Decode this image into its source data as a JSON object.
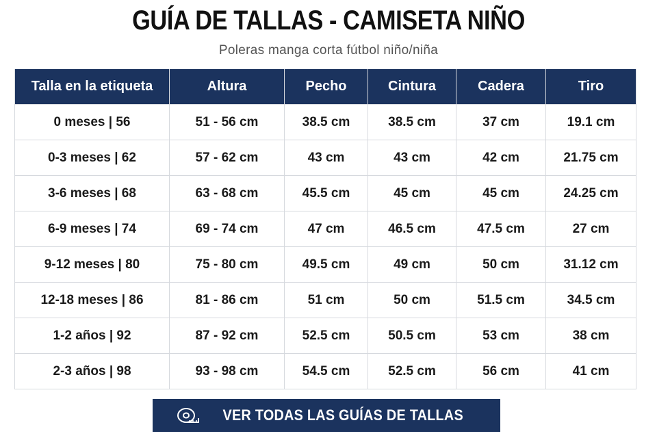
{
  "header": {
    "title": "GUÍA DE TALLAS - CAMISETA NIÑO",
    "subtitle": "Poleras manga corta fútbol niño/niña"
  },
  "table": {
    "columns": [
      "Talla en la etiqueta",
      "Altura",
      "Pecho",
      "Cintura",
      "Cadera",
      "Tiro"
    ],
    "rows": [
      [
        "0 meses | 56",
        "51 - 56 cm",
        "38.5 cm",
        "38.5 cm",
        "37 cm",
        "19.1 cm"
      ],
      [
        "0-3 meses | 62",
        "57 - 62 cm",
        "43 cm",
        "43 cm",
        "42 cm",
        "21.75 cm"
      ],
      [
        "3-6 meses | 68",
        "63 - 68 cm",
        "45.5 cm",
        "45 cm",
        "45 cm",
        "24.25 cm"
      ],
      [
        "6-9 meses | 74",
        "69 - 74 cm",
        "47 cm",
        "46.5 cm",
        "47.5 cm",
        "27 cm"
      ],
      [
        "9-12 meses | 80",
        "75 - 80 cm",
        "49.5 cm",
        "49 cm",
        "50 cm",
        "31.12 cm"
      ],
      [
        "12-18 meses | 86",
        "81 - 86 cm",
        "51 cm",
        "50 cm",
        "51.5 cm",
        "34.5 cm"
      ],
      [
        "1-2 años | 92",
        "87 - 92 cm",
        "52.5 cm",
        "50.5 cm",
        "53 cm",
        "38 cm"
      ],
      [
        "2-3 años | 98",
        "93 - 98 cm",
        "54.5 cm",
        "52.5 cm",
        "56 cm",
        "41 cm"
      ]
    ]
  },
  "button": {
    "label": "VER TODAS LAS GUÍAS DE TALLAS"
  }
}
